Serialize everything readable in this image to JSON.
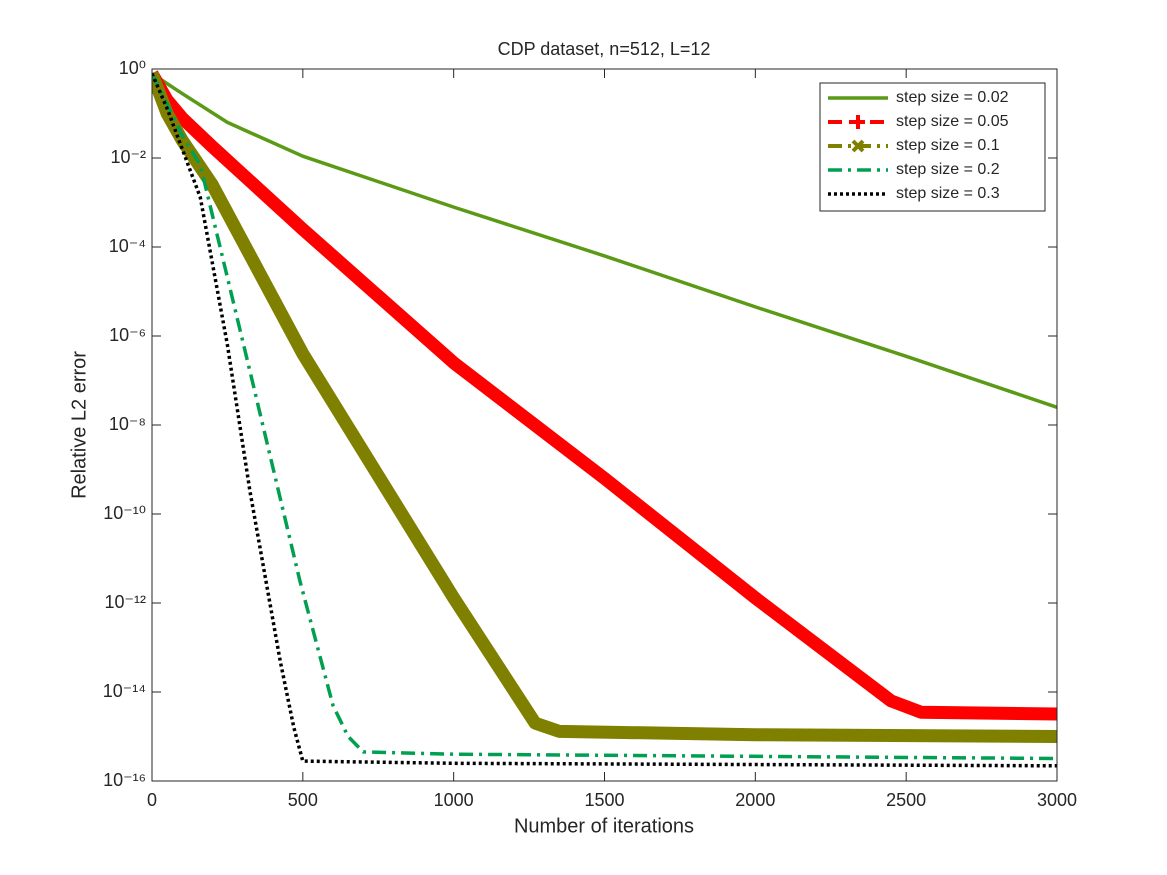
{
  "chart_data": {
    "type": "line",
    "title": "CDP dataset, n=512, L=12",
    "x_label": "Number of iterations",
    "y_label": "Relative L2 error",
    "y_scale": "log",
    "legend": "northeast",
    "grid": false,
    "xlim": [
      0,
      3000
    ],
    "xticks": [
      0,
      500,
      1000,
      1500,
      2000,
      2500,
      3000
    ],
    "ylim": [
      1e-16,
      1
    ],
    "yticks": [
      {
        "value": 1e-16,
        "label": "10⁻¹⁶"
      },
      {
        "value": 1e-14,
        "label": "10⁻¹⁴"
      },
      {
        "value": 1e-12,
        "label": "10⁻¹²"
      },
      {
        "value": 1e-10,
        "label": "10⁻¹⁰"
      },
      {
        "value": 1e-08,
        "label": "10⁻⁸"
      },
      {
        "value": 1e-06,
        "label": "10⁻⁶"
      },
      {
        "value": 0.0001,
        "label": "10⁻⁴"
      },
      {
        "value": 0.01,
        "label": "10⁻²"
      },
      {
        "value": 1,
        "label": "10⁰"
      }
    ],
    "series": [
      {
        "name": "step size = 0.02",
        "color": "#5a9a16",
        "dash": "solid",
        "x": [
          0,
          100,
          250,
          500,
          1000,
          1500,
          2000,
          2500,
          3000
        ],
        "values": [
          0.79,
          0.28,
          0.063,
          0.011,
          0.00079,
          6.3e-05,
          4.5e-06,
          3.5e-07,
          2.5e-08
        ]
      },
      {
        "name": "step size = 0.05",
        "color": "#ff0000",
        "dash": "dashed",
        "marker": "plus",
        "x": [
          0,
          50,
          100,
          200,
          500,
          1000,
          1500,
          2000,
          2450,
          2550,
          3000
        ],
        "values": [
          0.79,
          0.2,
          0.079,
          0.018,
          0.00025,
          2.5e-07,
          6.3e-10,
          1.3e-12,
          6.3e-15,
          3.5e-15,
          3.2e-15
        ]
      },
      {
        "name": "step size = 0.1",
        "color": "#808000",
        "dash": "dashdot",
        "marker": "cross",
        "x": [
          0,
          50,
          100,
          200,
          500,
          1000,
          1270,
          1350,
          2000,
          3000
        ],
        "values": [
          0.79,
          0.1,
          0.025,
          0.0025,
          4e-07,
          1.3e-12,
          2e-15,
          1.3e-15,
          1.1e-15,
          1e-15
        ]
      },
      {
        "name": "step size = 0.2",
        "color": "#00a050",
        "dash": "dashdot",
        "x": [
          0,
          50,
          100,
          160,
          325,
          490,
          600,
          650,
          700,
          1000,
          3000
        ],
        "values": [
          0.79,
          0.16,
          0.032,
          0.007,
          1.6e-07,
          3.2e-12,
          5e-15,
          1e-15,
          4.5e-16,
          4e-16,
          3.2e-16
        ]
      },
      {
        "name": "step size = 0.3",
        "color": "#000000",
        "dash": "dotted",
        "x": [
          0,
          50,
          100,
          160,
          250,
          325,
          425,
          470,
          500,
          1000,
          3000
        ],
        "values": [
          0.79,
          0.13,
          0.016,
          0.0013,
          6.3e-07,
          3.2e-10,
          5e-14,
          1.6e-15,
          2.8e-16,
          2.5e-16,
          2.2e-16
        ]
      }
    ]
  }
}
